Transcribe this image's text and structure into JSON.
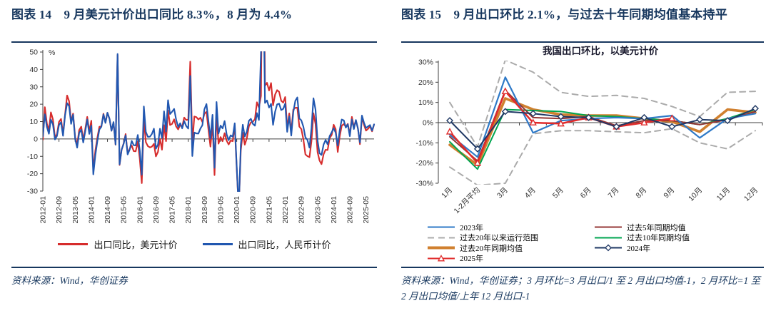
{
  "page": {
    "accent_color": "#17375E",
    "background": "#ffffff"
  },
  "left_figure": {
    "title": "图表 14　9 月美元计价出口同比 8.3%，8 月为 4.4%",
    "source": "资料来源：Wind，华创证券",
    "chart_data": {
      "type": "line",
      "title": "",
      "xlabel": "",
      "ylabel": "%",
      "ylim": [
        -30,
        50
      ],
      "yticks": [
        50,
        40,
        30,
        20,
        10,
        0,
        -10,
        -20,
        -30
      ],
      "grid": false,
      "legend_position": "bottom",
      "x_start": "2012-01",
      "x_end": "2025-09",
      "frequency": "monthly",
      "x_tick_step": 8,
      "x_tick_labels": [
        "2012-01",
        "2012-09",
        "2013-05",
        "2014-01",
        "2014-09",
        "2015-05",
        "2016-01",
        "2016-09",
        "2017-05",
        "2018-01",
        "2018-09",
        "2019-05",
        "2020-01",
        "2020-09",
        "2021-05",
        "2022-01",
        "2022-09",
        "2023-05",
        "2024-01",
        "2024-09",
        "2025-05"
      ],
      "series": [
        {
          "name": "出口同比，美元计价",
          "color": "#D62C2C",
          "values": [
            -0.5,
            18.3,
            8.8,
            4.9,
            15.3,
            11.3,
            1.0,
            2.7,
            9.8,
            11.5,
            2.8,
            14.0,
            25.0,
            21.7,
            10.0,
            14.6,
            0.9,
            -3.3,
            5.1,
            7.1,
            -0.4,
            5.6,
            12.7,
            4.3,
            10.5,
            -18.1,
            -6.6,
            0.8,
            7.0,
            7.2,
            14.5,
            9.4,
            15.1,
            11.6,
            4.7,
            9.5,
            -3.3,
            48.3,
            -15.0,
            -6.4,
            -2.5,
            2.8,
            -8.4,
            -5.6,
            -3.8,
            -7.0,
            -7.1,
            -1.5,
            -11.5,
            -25.4,
            11.5,
            -1.8,
            -4.1,
            -4.9,
            -4.4,
            -2.8,
            -10.0,
            -7.4,
            0.1,
            -6.2,
            7.9,
            -1.3,
            16.4,
            8.0,
            8.7,
            11.3,
            7.2,
            5.5,
            8.1,
            6.9,
            12.3,
            10.9,
            11.1,
            44.5,
            -2.7,
            12.9,
            12.6,
            11.2,
            12.2,
            9.8,
            14.5,
            15.6,
            5.4,
            -4.4,
            9.1,
            -20.8,
            14.2,
            -2.7,
            1.1,
            -1.3,
            3.3,
            -1.0,
            -3.2,
            -0.9,
            -1.3,
            7.9,
            -17.2,
            -40.6,
            -6.6,
            3.5,
            -3.3,
            0.5,
            7.2,
            9.5,
            9.9,
            11.4,
            21.1,
            18.1,
            24.8,
            154.8,
            30.6,
            32.3,
            27.9,
            32.2,
            19.3,
            25.6,
            28.1,
            27.1,
            22.0,
            20.9,
            24.1,
            6.3,
            14.7,
            3.9,
            16.9,
            17.9,
            18.0,
            7.1,
            5.7,
            -0.3,
            -8.9,
            -9.9,
            -10.5,
            -1.3,
            14.8,
            8.5,
            -7.5,
            -12.4,
            -14.5,
            -8.8,
            -6.2,
            -6.4,
            0.5,
            2.3,
            8.2,
            5.6,
            -7.5,
            1.5,
            7.6,
            8.6,
            7.0,
            8.7,
            2.4,
            12.7,
            6.7,
            10.7,
            6.0,
            -3.0,
            12.4,
            8.1,
            4.8,
            5.8,
            7.2,
            4.4,
            8.3
          ]
        },
        {
          "name": "出口同比，人民币计价",
          "color": "#2157B0",
          "values": [
            1.5,
            14.2,
            6.9,
            3.0,
            11.1,
            8.5,
            -0.3,
            1.7,
            8.0,
            9.6,
            1.8,
            13.5,
            20.6,
            18.9,
            8.7,
            13.9,
            -0.1,
            -5.0,
            3.5,
            5.3,
            -2.0,
            4.3,
            11.2,
            2.9,
            7.6,
            -20.4,
            -9.2,
            -1.2,
            5.4,
            7.0,
            14.1,
            9.2,
            15.1,
            11.6,
            4.7,
            9.7,
            -3.2,
            48.9,
            -14.6,
            -6.2,
            -2.8,
            2.1,
            -8.9,
            -6.1,
            -1.1,
            -3.6,
            -3.7,
            2.3,
            -6.6,
            -20.6,
            18.7,
            4.1,
            1.2,
            1.3,
            2.9,
            5.9,
            -5.6,
            -3.2,
            5.9,
            0.6,
            15.9,
            4.2,
            22.3,
            14.3,
            15.7,
            17.3,
            11.2,
            6.9,
            9.0,
            6.1,
            10.3,
            7.4,
            6.0,
            36.2,
            -9.8,
            3.7,
            3.2,
            3.1,
            6.0,
            7.9,
            17.0,
            20.1,
            10.2,
            0.2,
            13.9,
            -16.6,
            21.3,
            3.1,
            7.7,
            6.1,
            10.3,
            2.6,
            -0.7,
            2.1,
            1.3,
            9.0,
            -15.9,
            -40.9,
            -3.5,
            8.2,
            1.4,
            4.3,
            10.4,
            11.6,
            8.7,
            7.6,
            14.9,
            10.9,
            50.1,
            103.4,
            20.7,
            22.2,
            18.1,
            20.2,
            8.1,
            15.7,
            19.9,
            20.3,
            16.6,
            17.3,
            20.3,
            4.1,
            12.9,
            1.9,
            15.3,
            22.0,
            23.9,
            11.8,
            10.7,
            7.0,
            0.9,
            -0.5,
            -5.0,
            6.1,
            23.4,
            16.8,
            -0.8,
            -8.3,
            -9.2,
            -3.2,
            -0.6,
            -3.1,
            1.7,
            3.8,
            6.2,
            3.6,
            -3.8,
            5.1,
            11.2,
            10.7,
            6.5,
            8.4,
            1.6,
            11.2,
            5.7,
            10.9,
            6.0,
            -2.0,
            13.5,
            9.3,
            6.3,
            7.2,
            8.0,
            4.8,
            8.4
          ]
        }
      ]
    }
  },
  "right_figure": {
    "title": "图表 15　9 月出口环比 2.1%，与过去十年同期均值基本持平",
    "source": "资料来源：Wind，华创证券；3 月环比=3 月出口/1 至 2 月出口均值-1，2 月环比=1 至 2 月出口均值/上年 12 月出口-1",
    "chart_data": {
      "type": "line",
      "title": "我国出口环比，以美元计价",
      "xlabel": "",
      "ylabel": "",
      "ylim": [
        -30,
        30
      ],
      "yticks": [
        30,
        20,
        10,
        0,
        -10,
        -20,
        -30
      ],
      "ytick_suffix": "%",
      "grid": false,
      "legend_position": "bottom",
      "categories": [
        "1月",
        "1-2月平均",
        "3月",
        "4月",
        "5月",
        "6月",
        "7月",
        "8月",
        "9月",
        "10月",
        "11月",
        "12月"
      ],
      "draw_order": [
        1,
        2,
        5,
        4,
        0,
        3,
        6
      ],
      "series": [
        {
          "id": "y2023",
          "name": "2023年",
          "color": "#2E79C7",
          "style": "solid",
          "width": 2.2,
          "swatch": "line",
          "legend_column": 1,
          "values": [
            -6,
            -17,
            22.5,
            -5,
            1,
            2,
            2.5,
            2,
            3.5,
            -7.5,
            2,
            4.5
          ]
        },
        {
          "id": "range20y",
          "name": "过去20年以来运行范围",
          "color": "#ABABAB",
          "style": "dashed",
          "width": 2,
          "swatch": "dashed",
          "legend_column": 1,
          "values_upper": [
            10,
            -12,
            31,
            25,
            15,
            13,
            13.5,
            12,
            8,
            3,
            15,
            15.5
          ],
          "values_lower": [
            -22,
            -31,
            -30,
            -5.5,
            -4,
            -4,
            -4.5,
            -5,
            -3,
            -10,
            -13,
            -4
          ]
        },
        {
          "id": "avg20y",
          "name": "过去20年同期均值",
          "color": "#D0802F",
          "style": "solid",
          "width": 3.6,
          "swatch": "line-thick",
          "legend_column": 1,
          "values": [
            -11,
            -21,
            12,
            6.5,
            4,
            3.5,
            3.5,
            2,
            0.5,
            -4.5,
            6.5,
            5
          ]
        },
        {
          "id": "y2025",
          "name": "2025年",
          "color": "#E02B2B",
          "style": "solid",
          "width": 2.5,
          "marker": "triangle",
          "swatch": "line-triangle",
          "legend_column": 1,
          "values": [
            -4.5,
            -20,
            15.5,
            0,
            -0.5,
            2.5,
            -2,
            0,
            2.1
          ]
        },
        {
          "id": "avg5y",
          "name": "过去5年同期均值",
          "color": "#953735",
          "style": "solid",
          "width": 2,
          "swatch": "line",
          "legend_column": 2,
          "values": [
            -7,
            -19,
            16,
            2.5,
            2,
            3,
            -1.5,
            1,
            1,
            -1,
            1.5,
            5.5
          ]
        },
        {
          "id": "avg10y",
          "name": "过去10年同期均值",
          "color": "#00A550",
          "style": "solid",
          "width": 2,
          "swatch": "line",
          "legend_column": 2,
          "values": [
            -9.5,
            -23,
            6.5,
            6,
            5.5,
            3.5,
            3,
            2,
            1,
            -1,
            2,
            6.5
          ]
        },
        {
          "id": "y2024",
          "name": "2024年",
          "color": "#1F3864",
          "style": "solid",
          "width": 2,
          "marker": "diamond",
          "swatch": "line-diamond",
          "legend_column": 2,
          "values": [
            1,
            -13,
            5.5,
            4.5,
            3,
            2.5,
            -2,
            2.5,
            -2,
            1.5,
            1,
            7
          ]
        }
      ]
    }
  }
}
